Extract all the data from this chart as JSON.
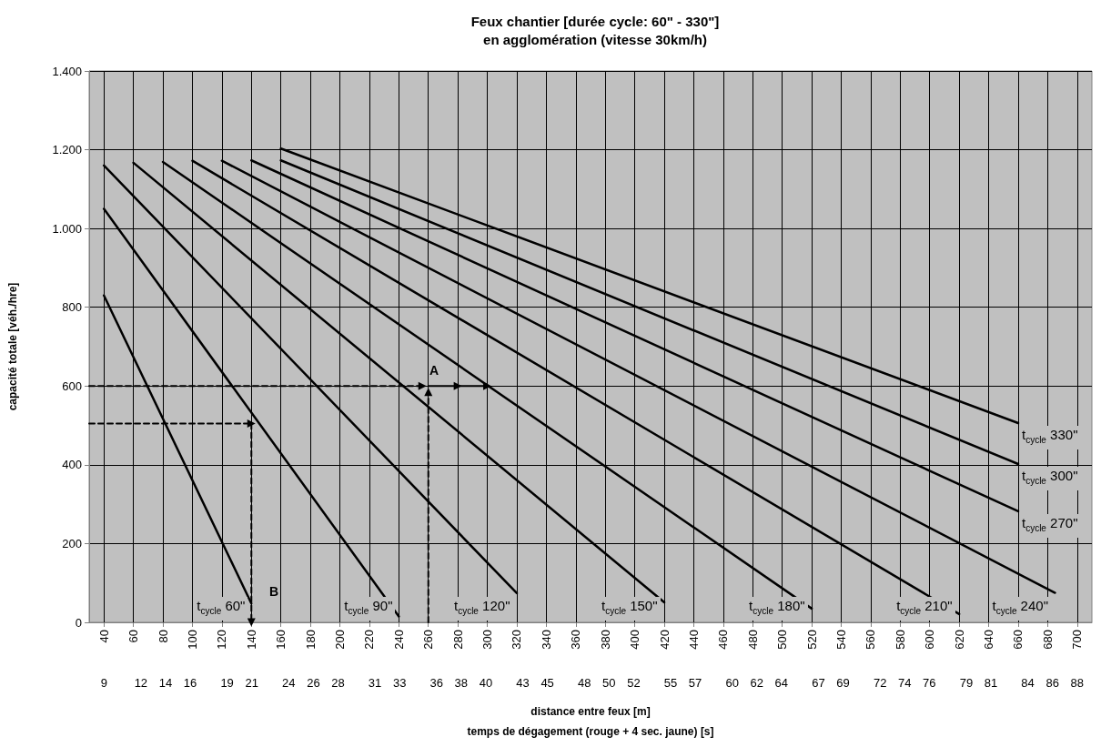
{
  "chart_data": {
    "type": "line",
    "title": "Feux chantier [durée cycle: 60\" - 330\"]\nen agglomération (vitesse 30km/h)",
    "xlabel": "distance entre feux [m]",
    "x2label": "temps de dégagement (rouge + 4 sec. jaune) [s]",
    "ylabel": "capacité totale [véh./hre]",
    "xlim": [
      30,
      710
    ],
    "xticks": [
      40,
      60,
      80,
      100,
      120,
      140,
      160,
      180,
      200,
      220,
      240,
      260,
      280,
      300,
      320,
      340,
      360,
      380,
      400,
      420,
      440,
      460,
      480,
      500,
      520,
      540,
      560,
      580,
      600,
      620,
      640,
      660,
      680,
      700
    ],
    "x2lim": [
      7.8,
      89.2
    ],
    "x2ticks": [
      9,
      12,
      14,
      16,
      19,
      21,
      24,
      26,
      28,
      31,
      33,
      36,
      38,
      40,
      43,
      45,
      48,
      50,
      52,
      55,
      57,
      60,
      62,
      64,
      67,
      69,
      72,
      74,
      76,
      79,
      81,
      84,
      86,
      88
    ],
    "ylim": [
      0,
      1400
    ],
    "yticks": [
      0,
      200,
      400,
      600,
      800,
      {
        "value": 1000,
        "label": "1.000"
      },
      {
        "value": 1200,
        "label": "1.200"
      },
      {
        "value": 1400,
        "label": "1.400"
      }
    ],
    "grid": true,
    "legend": false,
    "marker": "none",
    "line_style": "solid",
    "series": [
      {
        "name": "t$_{cycle}$ 60\"",
        "color": "#000000",
        "x": [
          40,
          140
        ],
        "values": [
          830,
          48
        ]
      },
      {
        "name": "t$_{cycle}$ 90\"",
        "color": "#000000",
        "x": [
          40,
          240
        ],
        "values": [
          1050,
          15
        ]
      },
      {
        "name": "t$_{cycle}$ 120\"",
        "color": "#000000",
        "x": [
          40,
          320
        ],
        "values": [
          1160,
          74
        ]
      },
      {
        "name": "t$_{cycle}$ 150\"",
        "color": "#000000",
        "x": [
          60,
          420
        ],
        "values": [
          1167,
          51
        ]
      },
      {
        "name": "t$_{cycle}$ 180\"",
        "color": "#000000",
        "x": [
          80,
          520
        ],
        "values": [
          1169,
          35
        ]
      },
      {
        "name": "t$_{cycle}$ 210\"",
        "color": "#000000",
        "x": [
          100,
          620
        ],
        "values": [
          1172,
          21
        ]
      },
      {
        "name": "t$_{cycle}$ 240\"",
        "color": "#000000",
        "x": [
          120,
          685
        ],
        "values": [
          1172,
          75
        ]
      },
      {
        "name": "t$_{cycle}$ 270\"",
        "color": "#000000",
        "x": [
          140,
          660
        ],
        "values": [
          1173,
          282
        ]
      },
      {
        "name": "t$_{cycle}$ 300\"",
        "color": "#000000",
        "x": [
          160,
          660
        ],
        "values": [
          1173,
          402
        ]
      },
      {
        "name": "t$_{cycle}$ 330\"",
        "color": "#000000",
        "x": [
          160,
          660
        ],
        "values": [
          1203,
          506
        ]
      },
      {
        "color": "#000000",
        "x": [
          30,
          256
        ],
        "values": [
          600,
          600
        ],
        "line_style": "dashed",
        "marker": "triangle"
      },
      {
        "color": "#000000",
        "x": [
          260,
          280,
          300
        ],
        "values": [
          600,
          600,
          600
        ],
        "line_style": "solid",
        "marker": "triangle"
      },
      {
        "color": "#000000",
        "x": [
          260,
          260
        ],
        "values": [
          0,
          585
        ],
        "line_style": "dashed",
        "marker": "triangle"
      },
      {
        "color": "#000000",
        "x": [
          30,
          140
        ],
        "values": [
          505,
          505
        ],
        "line_style": "dashed",
        "marker": "triangle"
      },
      {
        "color": "#000000",
        "x": [
          140,
          140
        ],
        "values": [
          505,
          0
        ],
        "line_style": "dashed",
        "marker": "triangle"
      }
    ],
    "annotations": [
      "A",
      "B"
    ]
  }
}
